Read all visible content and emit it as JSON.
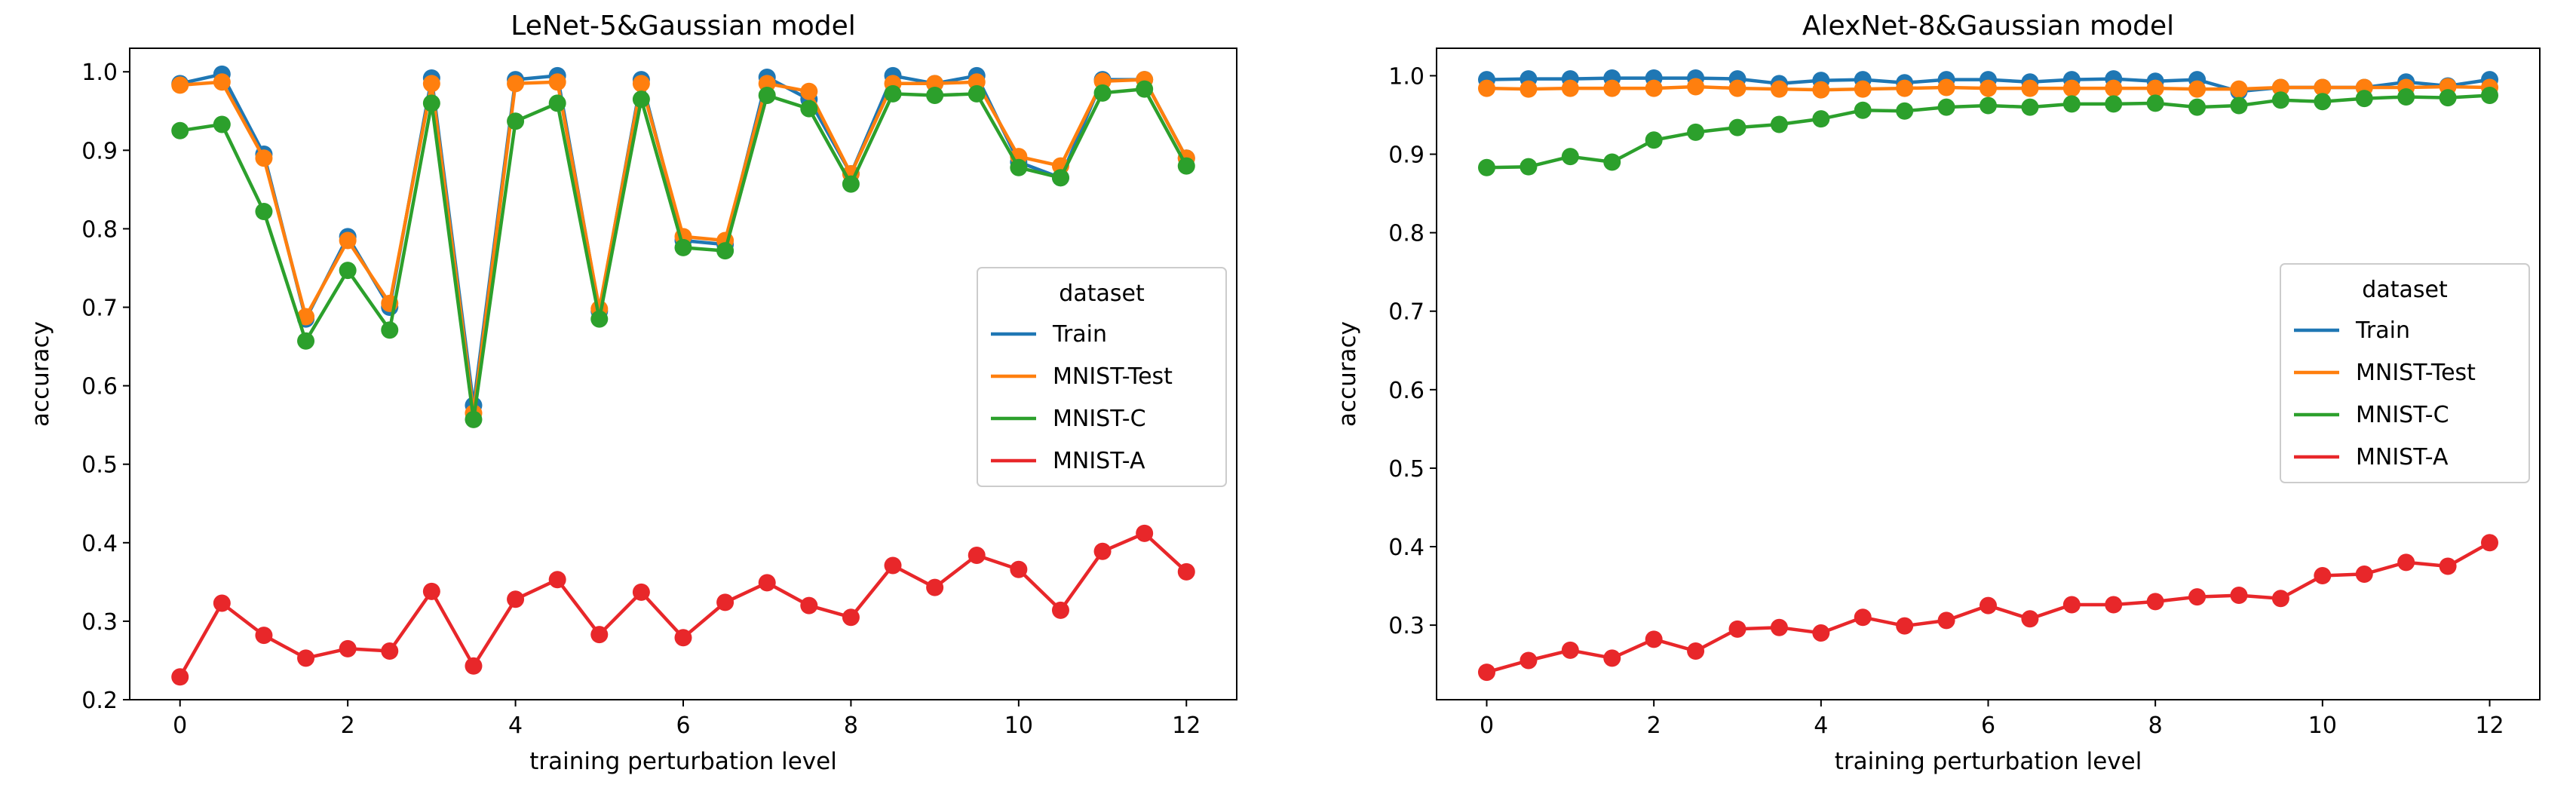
{
  "chart_data": [
    {
      "type": "line",
      "title": "LeNet-5&Gaussian model",
      "xlabel": "training perturbation level",
      "ylabel": "accuracy",
      "xlim": [
        -0.6,
        12.6
      ],
      "ylim": [
        0.2,
        1.03
      ],
      "xticks": [
        0,
        2,
        4,
        6,
        8,
        10,
        12
      ],
      "yticks": [
        0.2,
        0.3,
        0.4,
        0.5,
        0.6,
        0.7,
        0.8,
        0.9,
        1.0
      ],
      "ytick_labels": [
        "0.2",
        "0.3",
        "0.4",
        "0.5",
        "0.6",
        "0.7",
        "0.8",
        "0.9",
        "1.0"
      ],
      "legend": {
        "title": "dataset",
        "position": "center-right"
      },
      "x": [
        0,
        0.5,
        1,
        1.5,
        2,
        2.5,
        3,
        3.5,
        4,
        4.5,
        5,
        5.5,
        6,
        6.5,
        7,
        7.5,
        8,
        8.5,
        9,
        9.5,
        10,
        10.5,
        11,
        11.5,
        12
      ],
      "series": [
        {
          "name": "Train",
          "color": "#1f77b4",
          "values": [
            0.985,
            0.997,
            0.895,
            0.685,
            0.79,
            0.7,
            0.992,
            0.575,
            0.99,
            0.995,
            0.695,
            0.99,
            0.785,
            0.78,
            0.993,
            0.965,
            0.87,
            0.995,
            0.985,
            0.995,
            0.885,
            0.865,
            0.99,
            0.99,
            0.89
          ]
        },
        {
          "name": "MNIST-Test",
          "color": "#ff7f0e",
          "values": [
            0.983,
            0.987,
            0.89,
            0.688,
            0.785,
            0.705,
            0.985,
            0.565,
            0.985,
            0.987,
            0.698,
            0.985,
            0.79,
            0.785,
            0.985,
            0.975,
            0.87,
            0.985,
            0.985,
            0.987,
            0.892,
            0.88,
            0.988,
            0.99,
            0.89
          ]
        },
        {
          "name": "MNIST-C",
          "color": "#2ca02c",
          "values": [
            0.925,
            0.933,
            0.822,
            0.657,
            0.747,
            0.671,
            0.96,
            0.557,
            0.937,
            0.96,
            0.685,
            0.965,
            0.776,
            0.772,
            0.97,
            0.953,
            0.857,
            0.972,
            0.97,
            0.972,
            0.878,
            0.865,
            0.973,
            0.978,
            0.88
          ]
        },
        {
          "name": "MNIST-A",
          "color": "#e8272a",
          "values": [
            0.229,
            0.323,
            0.282,
            0.253,
            0.265,
            0.262,
            0.338,
            0.243,
            0.328,
            0.353,
            0.283,
            0.337,
            0.279,
            0.324,
            0.349,
            0.32,
            0.305,
            0.371,
            0.343,
            0.384,
            0.366,
            0.314,
            0.389,
            0.412,
            0.363
          ]
        }
      ]
    },
    {
      "type": "line",
      "title": "AlexNet-8&Gaussian model",
      "xlabel": "training perturbation level",
      "ylabel": "accuracy",
      "xlim": [
        -0.6,
        12.6
      ],
      "ylim": [
        0.205,
        1.035
      ],
      "xticks": [
        0,
        2,
        4,
        6,
        8,
        10,
        12
      ],
      "yticks": [
        0.3,
        0.4,
        0.5,
        0.6,
        0.7,
        0.8,
        0.9,
        1.0
      ],
      "ytick_labels": [
        "0.3",
        "0.4",
        "0.5",
        "0.6",
        "0.7",
        "0.8",
        "0.9",
        "1.0"
      ],
      "legend": {
        "title": "dataset",
        "position": "center-right"
      },
      "x": [
        0,
        0.5,
        1,
        1.5,
        2,
        2.5,
        3,
        3.5,
        4,
        4.5,
        5,
        5.5,
        6,
        6.5,
        7,
        7.5,
        8,
        8.5,
        9,
        9.5,
        10,
        10.5,
        11,
        11.5,
        12
      ],
      "series": [
        {
          "name": "Train",
          "color": "#1f77b4",
          "values": [
            0.995,
            0.996,
            0.996,
            0.997,
            0.997,
            0.997,
            0.996,
            0.99,
            0.994,
            0.995,
            0.991,
            0.995,
            0.995,
            0.992,
            0.995,
            0.996,
            0.993,
            0.995,
            0.98,
            0.985,
            0.985,
            0.985,
            0.992,
            0.987,
            0.995
          ]
        },
        {
          "name": "MNIST-Test",
          "color": "#ff7f0e",
          "values": [
            0.984,
            0.983,
            0.984,
            0.984,
            0.984,
            0.986,
            0.984,
            0.983,
            0.982,
            0.983,
            0.984,
            0.985,
            0.984,
            0.984,
            0.984,
            0.984,
            0.984,
            0.983,
            0.983,
            0.985,
            0.985,
            0.985,
            0.985,
            0.986,
            0.985
          ]
        },
        {
          "name": "MNIST-C",
          "color": "#2ca02c",
          "values": [
            0.883,
            0.884,
            0.897,
            0.89,
            0.918,
            0.928,
            0.934,
            0.938,
            0.945,
            0.956,
            0.955,
            0.96,
            0.962,
            0.96,
            0.964,
            0.964,
            0.965,
            0.96,
            0.962,
            0.969,
            0.967,
            0.971,
            0.973,
            0.972,
            0.975
          ]
        },
        {
          "name": "MNIST-A",
          "color": "#e8272a",
          "values": [
            0.24,
            0.255,
            0.268,
            0.258,
            0.282,
            0.267,
            0.295,
            0.297,
            0.29,
            0.31,
            0.299,
            0.306,
            0.325,
            0.308,
            0.326,
            0.326,
            0.33,
            0.336,
            0.338,
            0.334,
            0.363,
            0.365,
            0.38,
            0.375,
            0.405
          ]
        }
      ]
    }
  ]
}
